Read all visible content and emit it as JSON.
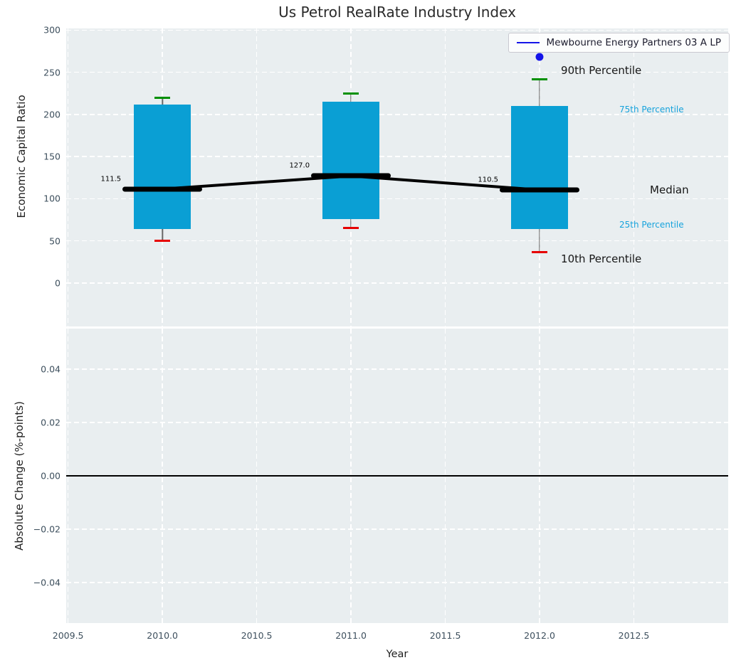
{
  "title": "Us Petrol RealRate Industry Index",
  "legend": {
    "items": [
      {
        "label": "Mewbourne Energy Partners 03 A LP",
        "color": "#1414e8"
      }
    ]
  },
  "annotations": {
    "p90": "90th Percentile",
    "p75": "75th Percentile",
    "median": "Median",
    "p25": "25th Percentile",
    "p10": "10th Percentile"
  },
  "colors": {
    "panel_bg": "#e9eef0",
    "grid": "#ffffff",
    "box_fill": "#0a9fd4",
    "cap_high": "#009000",
    "cap_low": "#e60000",
    "median_line": "#000000",
    "whisker": "#666666",
    "company_point": "#1414e8",
    "percentile_label_cyan": "#17a3dc",
    "tick_label": "#3d4f5d"
  },
  "chart_data": [
    {
      "type": "box",
      "title": "Us Petrol RealRate Industry Index",
      "xlabel": "Year",
      "ylabel": "Economic Capital Ratio",
      "categories": [
        2010,
        2011,
        2012
      ],
      "boxes": [
        {
          "year": 2010,
          "p10": 50,
          "p25": 64,
          "median": 111.5,
          "p75": 212,
          "p90": 220,
          "median_label": "111.5"
        },
        {
          "year": 2011,
          "p10": 65,
          "p25": 76,
          "median": 127.0,
          "p75": 215,
          "p90": 225,
          "median_label": "127.0"
        },
        {
          "year": 2012,
          "p10": 37,
          "p25": 64,
          "median": 110.5,
          "p75": 210,
          "p90": 242,
          "median_label": "110.5"
        }
      ],
      "company_series": {
        "name": "Mewbourne Energy Partners 03 A LP",
        "points": [
          {
            "x": 2012,
            "y": 268
          }
        ]
      },
      "xlim": [
        2009.49,
        2013.0
      ],
      "ylim": [
        -51.5,
        302
      ],
      "yticks": [
        300,
        250,
        200,
        150,
        100,
        50,
        0
      ],
      "ytick_labels": [
        "300",
        "250",
        "200",
        "150",
        "100",
        "50",
        "0"
      ],
      "xticks": [
        2009.5,
        2010.0,
        2010.5,
        2011.0,
        2011.5,
        2012.0,
        2012.5
      ],
      "xtick_labels": [
        "2009.5",
        "2010.0",
        "2010.5",
        "2011.0",
        "2011.5",
        "2012.0",
        "2012.5"
      ],
      "grid": true,
      "legend_position": "upper right"
    },
    {
      "type": "line",
      "xlabel": "Year",
      "ylabel": "Absolute Change (%-points)",
      "xlim": [
        2009.49,
        2013.0
      ],
      "ylim": [
        -0.0552,
        0.0552
      ],
      "yticks": [
        0.04,
        0.02,
        0.0,
        -0.02,
        -0.04
      ],
      "ytick_labels": [
        "0.04",
        "0.02",
        "0.00",
        "−0.02",
        "−0.04"
      ],
      "xticks": [
        2009.5,
        2010.0,
        2010.5,
        2011.0,
        2011.5,
        2012.0,
        2012.5
      ],
      "zero_line": 0.0,
      "series": [],
      "grid": true
    }
  ]
}
